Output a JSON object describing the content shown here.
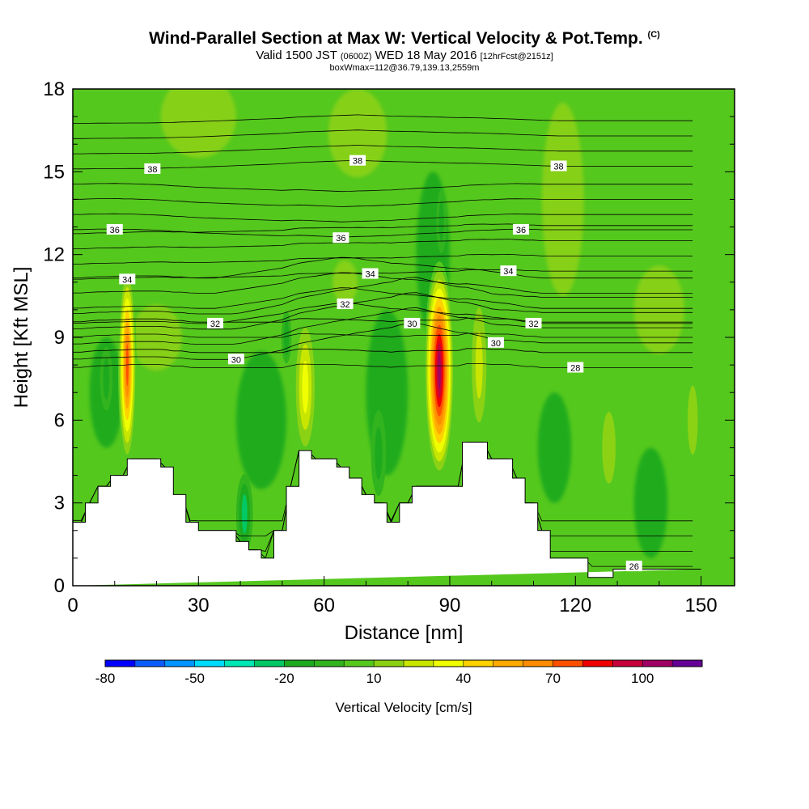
{
  "title": {
    "main": "Wind-Parallel Section at Max W: Vertical Velocity & Pot.Temp.",
    "copyright": "(C)",
    "line2_a": "Valid 1500 JST",
    "line2_b": "(0600Z)",
    "line2_c": "WED 18 May 2016",
    "line2_d": "[12hrFcst@2151z]",
    "line3": "boxWmax=112@36.79,139.13,2559m"
  },
  "chart_data": {
    "type": "heatmap",
    "xlabel": "Distance [nm]",
    "ylabel": "Height [Kft MSL]",
    "xlim": [
      0,
      158
    ],
    "ylim": [
      0,
      18
    ],
    "x_ticks": [
      0,
      30,
      60,
      90,
      120,
      150
    ],
    "y_ticks": [
      0,
      3,
      6,
      9,
      12,
      15,
      18
    ],
    "grid": false,
    "colorbar": {
      "label": "Vertical Velocity [cm/s]",
      "placement": "bottom",
      "tick_labels": [
        -80,
        -50,
        -20,
        10,
        40,
        70,
        100
      ],
      "bins": [
        -80,
        -70,
        -60,
        -50,
        -40,
        -30,
        -20,
        -10,
        0,
        10,
        20,
        30,
        40,
        50,
        60,
        70,
        80,
        90,
        100,
        110,
        120
      ],
      "colors": [
        "#0000ff",
        "#0a5cff",
        "#0096ff",
        "#00dcff",
        "#00e6b4",
        "#00c864",
        "#1eaa1e",
        "#32b41e",
        "#55c81e",
        "#8cd214",
        "#c8e600",
        "#f0ff00",
        "#ffd200",
        "#ffaa00",
        "#ff8c00",
        "#ff5000",
        "#f00000",
        "#c8003c",
        "#a00064",
        "#640096"
      ]
    },
    "vertical_velocity_maxima": [
      {
        "x": 13,
        "y": 8,
        "value": 80
      },
      {
        "x": 55.5,
        "y": 7.2,
        "value": 40
      },
      {
        "x": 87.5,
        "y": 7.8,
        "value": 112
      },
      {
        "x": 97,
        "y": 8,
        "value": 35
      },
      {
        "x": 128,
        "y": 5,
        "value": 25
      },
      {
        "x": 148,
        "y": 6,
        "value": 20
      }
    ],
    "vertical_velocity_minima": [
      {
        "x": 41,
        "y": 2.6,
        "value": -30
      },
      {
        "x": 73,
        "y": 4.8,
        "value": -25
      },
      {
        "x": 51,
        "y": 9,
        "value": -25
      },
      {
        "x": 8,
        "y": 7.5,
        "value": -25
      },
      {
        "x": 88,
        "y": 13.2,
        "value": -25
      }
    ],
    "potential_temperature_contour_labels": [
      {
        "value": 38,
        "x": 19,
        "y": 15.1
      },
      {
        "value": 38,
        "x": 68,
        "y": 15.4
      },
      {
        "value": 38,
        "x": 116,
        "y": 15.2
      },
      {
        "value": 36,
        "x": 10,
        "y": 12.9
      },
      {
        "value": 36,
        "x": 64,
        "y": 12.6
      },
      {
        "value": 36,
        "x": 107,
        "y": 12.9
      },
      {
        "value": 34,
        "x": 13,
        "y": 11.1
      },
      {
        "value": 34,
        "x": 71,
        "y": 11.3
      },
      {
        "value": 34,
        "x": 104,
        "y": 11.4
      },
      {
        "value": 32,
        "x": 34,
        "y": 9.5
      },
      {
        "value": 32,
        "x": 65,
        "y": 10.2
      },
      {
        "value": 32,
        "x": 110,
        "y": 9.5
      },
      {
        "value": 30,
        "x": 39,
        "y": 8.2
      },
      {
        "value": 30,
        "x": 81,
        "y": 9.5
      },
      {
        "value": 30,
        "x": 101,
        "y": 8.8
      },
      {
        "value": 28,
        "x": 120,
        "y": 7.9
      },
      {
        "value": 26,
        "x": 134,
        "y": 0.7
      }
    ],
    "terrain_profile": {
      "x": [
        0,
        3,
        3,
        6,
        6,
        9,
        9,
        12,
        12,
        13,
        13,
        21,
        21,
        24,
        24,
        27,
        27,
        30,
        30,
        33,
        33,
        39,
        39,
        42,
        42,
        45,
        45,
        48,
        48,
        51,
        51,
        54,
        54,
        57,
        57,
        63,
        63,
        66,
        66,
        69,
        69,
        72,
        72,
        75,
        75,
        78,
        78,
        81,
        81,
        84,
        84,
        87,
        87,
        93,
        93,
        99,
        99,
        105,
        105,
        108,
        108,
        111,
        111,
        114,
        114,
        123,
        123,
        126,
        126,
        129,
        129,
        132,
        132,
        135,
        135,
        150,
        150,
        158
      ],
      "y": [
        2.3,
        2.3,
        3,
        3,
        3.6,
        3.6,
        4,
        4,
        4,
        4,
        4.6,
        4.6,
        4.3,
        4.3,
        3.3,
        3.3,
        2.3,
        2.3,
        2,
        2,
        2,
        2,
        1.6,
        1.6,
        1.3,
        1.3,
        1,
        1,
        2,
        2,
        3.6,
        3.6,
        4.9,
        4.9,
        4.6,
        4.6,
        4.3,
        4.3,
        3.9,
        3.9,
        3.3,
        3.3,
        3,
        3,
        2.3,
        2.3,
        3,
        3,
        3.6,
        3.6,
        3.6,
        3.6,
        3.6,
        3.6,
        5.2,
        5.2,
        4.6,
        4.6,
        3.9,
        3.9,
        3,
        3,
        2,
        2,
        1,
        1,
        0.3,
        0.3,
        0.3,
        0.3,
        0.6,
        0.6,
        0.6,
        0.6,
        0.6,
        0.6
      ]
    }
  }
}
